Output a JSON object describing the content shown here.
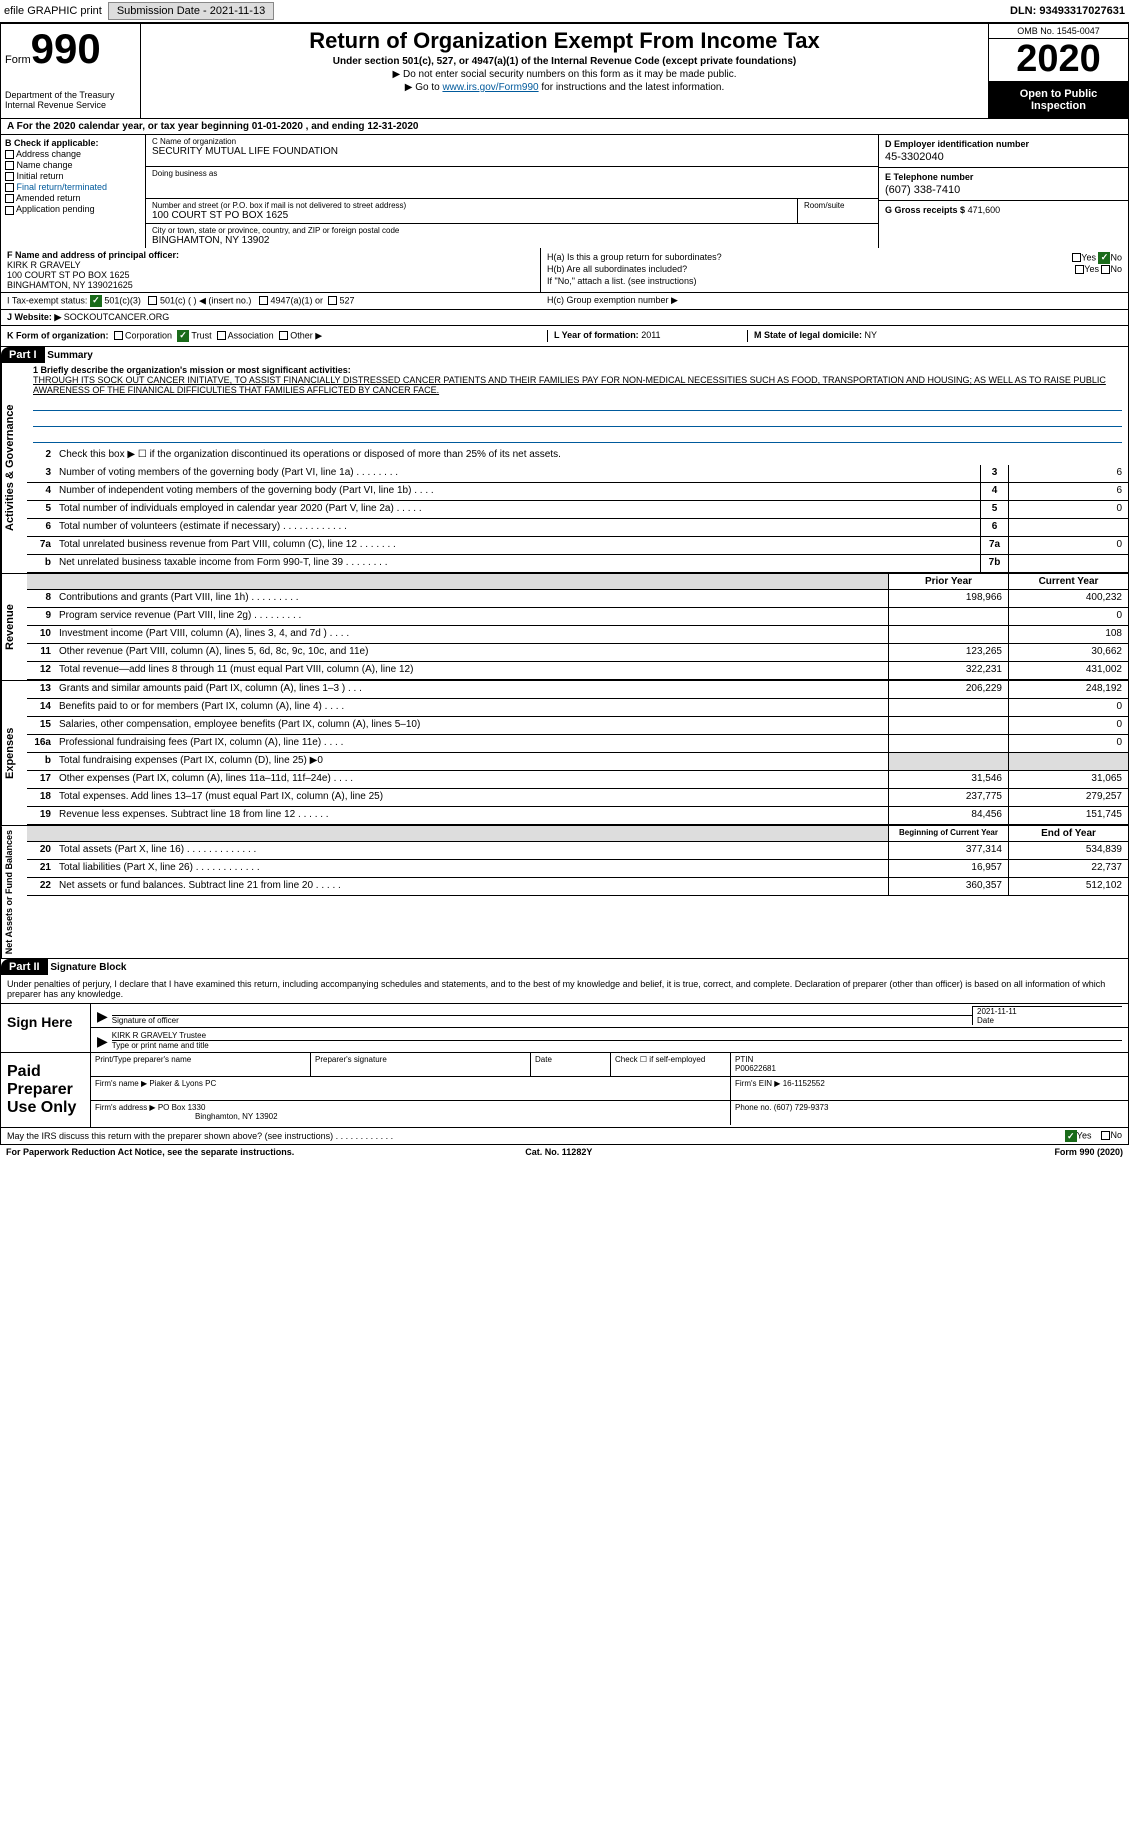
{
  "topbar": {
    "efile": "efile GRAPHIC print",
    "subdate_label": "Submission Date - 2021-11-13",
    "dln": "DLN: 93493317027631"
  },
  "header": {
    "form_word": "Form",
    "form_num": "990",
    "dept": "Department of the Treasury\nInternal Revenue Service",
    "title": "Return of Organization Exempt From Income Tax",
    "subtitle": "Under section 501(c), 527, or 4947(a)(1) of the Internal Revenue Code (except private foundations)",
    "instr1": "▶ Do not enter social security numbers on this form as it may be made public.",
    "instr2_pre": "▶ Go to ",
    "instr2_link": "www.irs.gov/Form990",
    "instr2_post": " for instructions and the latest information.",
    "omb": "OMB No. 1545-0047",
    "year": "2020",
    "open_pub": "Open to Public Inspection"
  },
  "period": "A For the 2020 calendar year, or tax year beginning 01-01-2020    , and ending 12-31-2020",
  "colB": {
    "hdr": "B Check if applicable:",
    "items": [
      "Address change",
      "Name change",
      "Initial return",
      "Final return/terminated",
      "Amended return",
      "Application pending"
    ]
  },
  "colC": {
    "name_label": "C Name of organization",
    "name": "SECURITY MUTUAL LIFE FOUNDATION",
    "dba_label": "Doing business as",
    "addr_label": "Number and street (or P.O. box if mail is not delivered to street address)",
    "addr": "100 COURT ST PO BOX 1625",
    "room_label": "Room/suite",
    "city_label": "City or town, state or province, country, and ZIP or foreign postal code",
    "city": "BINGHAMTON, NY  13902"
  },
  "colD": {
    "ein_label": "D Employer identification number",
    "ein": "45-3302040",
    "phone_label": "E Telephone number",
    "phone": "(607) 338-7410",
    "gross_label": "G Gross receipts $",
    "gross": "471,600"
  },
  "fg": {
    "f_label": "F  Name and address of principal officer:",
    "f_name": "KIRK R GRAVELY",
    "f_addr1": "100 COURT ST PO BOX 1625",
    "f_addr2": "BINGHAMTON, NY  139021625",
    "ha": "H(a)  Is this a group return for subordinates?",
    "hb": "H(b)  Are all subordinates included?",
    "hb_note": "If \"No,\" attach a list. (see instructions)",
    "hc": "H(c)  Group exemption number ▶",
    "yes": "Yes",
    "no": "No"
  },
  "i": {
    "label": "I   Tax-exempt status:",
    "opts": [
      "501(c)(3)",
      "501(c) (  ) ◀ (insert no.)",
      "4947(a)(1) or",
      "527"
    ]
  },
  "j": {
    "label": "J  Website: ▶",
    "val": "SOCKOUTCANCER.ORG"
  },
  "k": {
    "label": "K Form of organization:",
    "opts": [
      "Corporation",
      "Trust",
      "Association",
      "Other ▶"
    ],
    "l_label": "L Year of formation:",
    "l_val": "2011",
    "m_label": "M State of legal domicile:",
    "m_val": "NY"
  },
  "part1": {
    "hdr": "Part I",
    "title": "Summary",
    "mission_label": "1  Briefly describe the organization's mission or most significant activities:",
    "mission": "THROUGH ITS SOCK OUT CANCER INITIATVE, TO ASSIST FINANCIALLY DISTRESSED CANCER PATIENTS AND THEIR FAMILIES PAY FOR NON-MEDICAL NECESSITIES SUCH AS FOOD, TRANSPORTATION AND HOUSING; AS WELL AS TO RAISE PUBLIC AWARENESS OF THE FINANICAL DIFFICULTIES THAT FAMILIES AFFLICTED BY CANCER FACE.",
    "vtab_gov": "Activities & Governance",
    "vtab_rev": "Revenue",
    "vtab_exp": "Expenses",
    "vtab_net": "Net Assets or Fund Balances",
    "line2": "Check this box ▶ ☐ if the organization discontinued its operations or disposed of more than 25% of its net assets.",
    "lines_gov": [
      {
        "n": "3",
        "t": "Number of voting members of the governing body (Part VI, line 1a)  .   .   .   .   .   .   .   .",
        "b": "3",
        "v": "6"
      },
      {
        "n": "4",
        "t": "Number of independent voting members of the governing body (Part VI, line 1b)  .   .   .   .",
        "b": "4",
        "v": "6"
      },
      {
        "n": "5",
        "t": "Total number of individuals employed in calendar year 2020 (Part V, line 2a)  .   .   .   .   .",
        "b": "5",
        "v": "0"
      },
      {
        "n": "6",
        "t": "Total number of volunteers (estimate if necessary)   .   .   .   .   .   .   .   .   .   .   .   .",
        "b": "6",
        "v": ""
      },
      {
        "n": "7a",
        "t": "Total unrelated business revenue from Part VIII, column (C), line 12  .   .   .   .   .   .   .",
        "b": "7a",
        "v": "0"
      },
      {
        "n": "b",
        "t": "Net unrelated business taxable income from Form 990-T, line 39  .   .   .   .   .   .   .   .",
        "b": "7b",
        "v": ""
      }
    ],
    "py_hdr": "Prior Year",
    "cy_hdr": "Current Year",
    "lines_rev": [
      {
        "n": "8",
        "t": "Contributions and grants (Part VIII, line 1h)  .   .   .   .   .   .   .   .   .",
        "py": "198,966",
        "cy": "400,232"
      },
      {
        "n": "9",
        "t": "Program service revenue (Part VIII, line 2g)  .   .   .   .   .   .   .   .   .",
        "py": "",
        "cy": "0"
      },
      {
        "n": "10",
        "t": "Investment income (Part VIII, column (A), lines 3, 4, and 7d )  .   .   .   .",
        "py": "",
        "cy": "108"
      },
      {
        "n": "11",
        "t": "Other revenue (Part VIII, column (A), lines 5, 6d, 8c, 9c, 10c, and 11e)",
        "py": "123,265",
        "cy": "30,662"
      },
      {
        "n": "12",
        "t": "Total revenue—add lines 8 through 11 (must equal Part VIII, column (A), line 12)",
        "py": "322,231",
        "cy": "431,002"
      }
    ],
    "lines_exp": [
      {
        "n": "13",
        "t": "Grants and similar amounts paid (Part IX, column (A), lines 1–3 )  .   .   .",
        "py": "206,229",
        "cy": "248,192"
      },
      {
        "n": "14",
        "t": "Benefits paid to or for members (Part IX, column (A), line 4)  .   .   .   .",
        "py": "",
        "cy": "0"
      },
      {
        "n": "15",
        "t": "Salaries, other compensation, employee benefits (Part IX, column (A), lines 5–10)",
        "py": "",
        "cy": "0"
      },
      {
        "n": "16a",
        "t": "Professional fundraising fees (Part IX, column (A), line 11e)  .   .   .   .",
        "py": "",
        "cy": "0"
      },
      {
        "n": "b",
        "t": "Total fundraising expenses (Part IX, column (D), line 25) ▶0",
        "py": "",
        "cy": "",
        "shade": true
      },
      {
        "n": "17",
        "t": "Other expenses (Part IX, column (A), lines 11a–11d, 11f–24e)  .   .   .   .",
        "py": "31,546",
        "cy": "31,065"
      },
      {
        "n": "18",
        "t": "Total expenses. Add lines 13–17 (must equal Part IX, column (A), line 25)",
        "py": "237,775",
        "cy": "279,257"
      },
      {
        "n": "19",
        "t": "Revenue less expenses. Subtract line 18 from line 12  .   .   .   .   .   .",
        "py": "84,456",
        "cy": "151,745"
      }
    ],
    "boy_hdr": "Beginning of Current Year",
    "eoy_hdr": "End of Year",
    "lines_net": [
      {
        "n": "20",
        "t": "Total assets (Part X, line 16)  .   .   .   .   .   .   .   .   .   .   .   .   .",
        "py": "377,314",
        "cy": "534,839"
      },
      {
        "n": "21",
        "t": "Total liabilities (Part X, line 26)  .   .   .   .   .   .   .   .   .   .   .   .",
        "py": "16,957",
        "cy": "22,737"
      },
      {
        "n": "22",
        "t": "Net assets or fund balances. Subtract line 21 from line 20  .   .   .   .   .",
        "py": "360,357",
        "cy": "512,102"
      }
    ]
  },
  "part2": {
    "hdr": "Part II",
    "title": "Signature Block",
    "decl": "Under penalties of perjury, I declare that I have examined this return, including accompanying schedules and statements, and to the best of my knowledge and belief, it is true, correct, and complete. Declaration of preparer (other than officer) is based on all information of which preparer has any knowledge.",
    "sign_here": "Sign Here",
    "sig_officer": "Signature of officer",
    "sig_date": "2021-11-11",
    "date_lbl": "Date",
    "name_title": "KIRK R GRAVELY Trustee",
    "type_lbl": "Type or print name and title",
    "paid_prep": "Paid Preparer Use Only",
    "print_name_lbl": "Print/Type preparer's name",
    "prep_sig_lbl": "Preparer's signature",
    "prep_date_lbl": "Date",
    "check_self": "Check ☐ if self-employed",
    "ptin_lbl": "PTIN",
    "ptin": "P00622681",
    "firm_name_lbl": "Firm's name    ▶",
    "firm_name": "Piaker & Lyons PC",
    "firm_ein_lbl": "Firm's EIN ▶",
    "firm_ein": "16-1152552",
    "firm_addr_lbl": "Firm's address ▶",
    "firm_addr1": "PO Box 1330",
    "firm_addr2": "Binghamton, NY  13902",
    "firm_phone_lbl": "Phone no.",
    "firm_phone": "(607) 729-9373"
  },
  "footer": {
    "discuss": "May the IRS discuss this return with the preparer shown above? (see instructions)  .   .   .   .   .   .   .   .   .   .   .   .",
    "yes": "Yes",
    "no": "No",
    "pra": "For Paperwork Reduction Act Notice, see the separate instructions.",
    "cat": "Cat. No. 11282Y",
    "form": "Form 990 (2020)"
  }
}
